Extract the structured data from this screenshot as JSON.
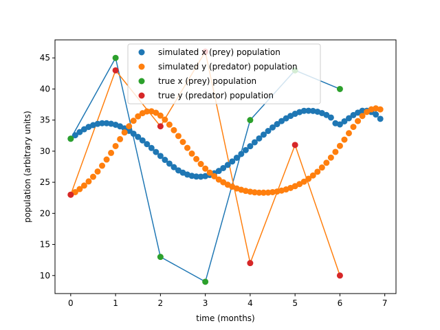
{
  "chart_data": {
    "type": "scatter",
    "title": "",
    "xlabel": "time (months)",
    "ylabel": "population (arbitrary units)",
    "xlim": [
      -0.35,
      7.25
    ],
    "ylim": [
      7.1,
      47.9
    ],
    "xticks": [
      0,
      1,
      2,
      3,
      4,
      5,
      6,
      7
    ],
    "yticks": [
      10,
      15,
      20,
      25,
      30,
      35,
      40,
      45
    ],
    "grid": false,
    "legend_position": "upper-center",
    "series": [
      {
        "name": "simulated x (prey) population",
        "kind": "scatter",
        "color": "#1f77b4",
        "x": [
          0.0,
          0.1,
          0.2,
          0.3,
          0.4,
          0.5,
          0.6,
          0.7,
          0.8,
          0.9,
          1.0,
          1.1,
          1.2,
          1.3,
          1.4,
          1.5,
          1.6,
          1.7,
          1.8,
          1.9,
          2.0,
          2.1,
          2.2,
          2.3,
          2.4,
          2.5,
          2.6,
          2.7,
          2.8,
          2.9,
          3.0,
          3.1,
          3.2,
          3.3,
          3.4,
          3.5,
          3.6,
          3.7,
          3.8,
          3.9,
          4.0,
          4.1,
          4.2,
          4.3,
          4.4,
          4.5,
          4.6,
          4.7,
          4.8,
          4.9,
          5.0,
          5.1,
          5.2,
          5.3,
          5.4,
          5.5,
          5.6,
          5.7,
          5.8,
          5.9,
          6.0,
          6.1,
          6.2,
          6.3,
          6.4,
          6.5,
          6.6,
          6.7,
          6.8,
          6.9
        ],
        "y": [
          32.0,
          32.56,
          33.07,
          33.52,
          33.9,
          34.19,
          34.39,
          34.5,
          34.5,
          34.41,
          34.25,
          33.99,
          33.66,
          33.27,
          32.81,
          32.29,
          31.73,
          31.13,
          30.51,
          29.87,
          29.23,
          28.6,
          28.0,
          27.43,
          26.91,
          26.54,
          26.24,
          26.03,
          25.92,
          25.9,
          25.99,
          26.17,
          26.45,
          26.82,
          27.28,
          27.79,
          28.35,
          28.94,
          29.55,
          30.17,
          30.8,
          31.43,
          32.05,
          32.66,
          33.25,
          33.82,
          34.35,
          34.84,
          35.28,
          35.67,
          36.01,
          36.28,
          36.49,
          36.5,
          36.47,
          36.35,
          36.13,
          35.82,
          35.41,
          34.49,
          34.3,
          34.8,
          35.3,
          35.8,
          36.2,
          36.5,
          36.5,
          36.3,
          35.9,
          35.2
        ],
        "note": ""
      },
      {
        "name": "simulated y (predator) population",
        "kind": "scatter",
        "color": "#ff7f0e",
        "x": [
          0.0,
          0.1,
          0.2,
          0.3,
          0.4,
          0.5,
          0.6,
          0.7,
          0.8,
          0.9,
          1.0,
          1.1,
          1.2,
          1.3,
          1.4,
          1.5,
          1.6,
          1.7,
          1.8,
          1.9,
          2.0,
          2.1,
          2.2,
          2.3,
          2.4,
          2.5,
          2.6,
          2.7,
          2.8,
          2.9,
          3.0,
          3.1,
          3.2,
          3.3,
          3.4,
          3.5,
          3.6,
          3.7,
          3.8,
          3.9,
          4.0,
          4.1,
          4.2,
          4.3,
          4.4,
          4.5,
          4.6,
          4.7,
          4.8,
          4.9,
          5.0,
          5.1,
          5.2,
          5.3,
          5.4,
          5.5,
          5.6,
          5.7,
          5.8,
          5.9,
          6.0,
          6.1,
          6.2,
          6.3,
          6.4,
          6.5,
          6.6,
          6.7,
          6.8,
          6.9
        ],
        "y": [
          23.0,
          23.41,
          23.9,
          24.47,
          25.13,
          25.88,
          26.73,
          27.66,
          28.66,
          29.72,
          30.82,
          31.93,
          33.01,
          34.01,
          34.89,
          35.6,
          36.11,
          36.39,
          36.41,
          36.18,
          35.72,
          35.07,
          34.27,
          33.38,
          32.44,
          31.48,
          30.53,
          29.61,
          28.74,
          27.94,
          27.2,
          26.54,
          25.96,
          25.44,
          25.0,
          24.61,
          24.29,
          24.01,
          23.79,
          23.61,
          23.48,
          23.38,
          23.33,
          23.32,
          23.34,
          23.41,
          23.51,
          23.66,
          23.85,
          24.09,
          24.37,
          24.71,
          25.1,
          25.56,
          26.09,
          26.69,
          27.37,
          28.13,
          28.97,
          29.88,
          30.85,
          31.86,
          32.89,
          33.9,
          34.84,
          35.66,
          36.31,
          36.73,
          36.88,
          36.72
        ],
        "note": ""
      },
      {
        "name": "true x (prey) population",
        "kind": "scatter+line",
        "color": "#2ca02c",
        "line_color": "#1f77b4",
        "x": [
          0,
          1,
          2,
          3,
          4,
          5,
          6
        ],
        "y": [
          32,
          45,
          13,
          9,
          35,
          43,
          40
        ]
      },
      {
        "name": "true y (predator) population",
        "kind": "scatter+line",
        "color": "#d62728",
        "line_color": "#ff7f0e",
        "x": [
          0,
          1,
          2,
          3,
          4,
          5,
          6
        ],
        "y": [
          23,
          43,
          34,
          46,
          12,
          31,
          10
        ]
      }
    ]
  }
}
